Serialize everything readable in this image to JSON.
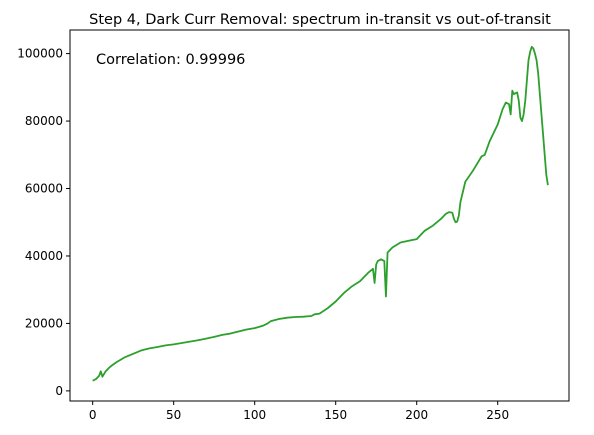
{
  "chart_data": {
    "type": "line",
    "title": "Step 4, Dark Curr Removal: spectrum in-transit vs out-of-transit",
    "xlabel": "",
    "ylabel": "",
    "annotation": "Correlation: 0.99996",
    "xlim": [
      -14,
      294
    ],
    "ylim": [
      -3000,
      107000
    ],
    "x_ticks": [
      0,
      50,
      100,
      150,
      200,
      250
    ],
    "y_ticks": [
      0,
      20000,
      40000,
      60000,
      80000,
      100000
    ],
    "grid": false,
    "series": [
      {
        "color": "#2ca02c",
        "x": [
          0,
          2,
          4,
          5,
          6,
          8,
          10,
          12,
          15,
          20,
          25,
          30,
          35,
          40,
          45,
          50,
          55,
          60,
          65,
          70,
          75,
          80,
          85,
          90,
          95,
          100,
          105,
          108,
          110,
          115,
          120,
          125,
          130,
          135,
          137,
          140,
          145,
          150,
          155,
          160,
          165,
          170,
          173,
          174,
          175,
          176,
          178,
          180,
          181,
          182,
          185,
          190,
          195,
          200,
          203,
          205,
          210,
          215,
          218,
          220,
          222,
          223,
          224,
          225,
          226,
          227,
          228,
          230,
          235,
          240,
          242,
          245,
          250,
          253,
          255,
          257,
          258,
          259,
          260,
          262,
          263,
          264,
          265,
          266,
          267,
          268,
          269,
          270,
          271,
          272,
          273,
          274,
          275,
          276,
          277,
          278,
          279,
          280,
          281
        ],
        "values": [
          3000,
          3500,
          4500,
          5800,
          4200,
          5800,
          6800,
          7600,
          8600,
          10000,
          11000,
          12000,
          12600,
          13000,
          13500,
          13800,
          14200,
          14600,
          15000,
          15500,
          16000,
          16600,
          17000,
          17600,
          18200,
          18600,
          19300,
          20000,
          20700,
          21300,
          21700,
          21900,
          22000,
          22200,
          22700,
          22900,
          24500,
          26500,
          29000,
          31000,
          32500,
          35000,
          36200,
          32000,
          37500,
          38500,
          39000,
          38500,
          28000,
          41000,
          42500,
          44000,
          44500,
          45000,
          46500,
          47500,
          49000,
          51000,
          52500,
          53000,
          52800,
          51000,
          50000,
          50200,
          52000,
          56000,
          58000,
          62000,
          65500,
          69500,
          70000,
          74000,
          79000,
          83500,
          85500,
          85000,
          82000,
          89000,
          88000,
          88500,
          86000,
          81000,
          80000,
          82000,
          86000,
          92000,
          98000,
          100500,
          102000,
          101500,
          100000,
          98000,
          94000,
          88000,
          82000,
          76000,
          70000,
          64000,
          61000
        ]
      }
    ]
  }
}
